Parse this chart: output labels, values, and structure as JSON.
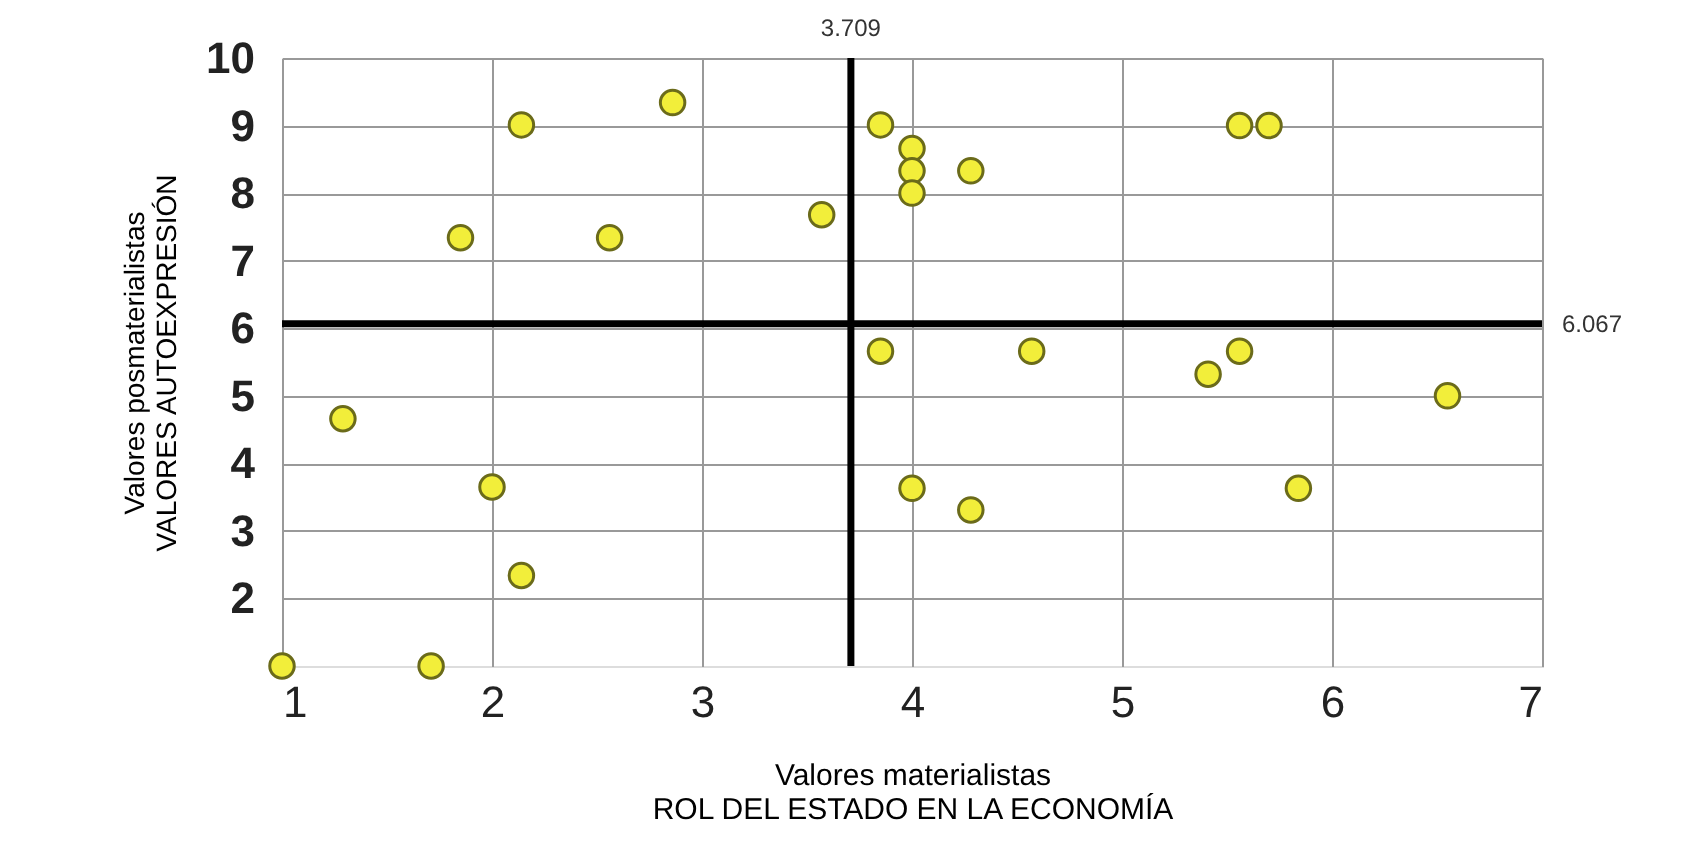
{
  "chart_data": {
    "type": "scatter",
    "xlabel": "Valores materialistas\nROL DEL ESTADO EN LA ECONOMÍA",
    "ylabel": "Valores posmaterialistas\nVALORES AUTOEXPRESIÓN",
    "x": [
      1,
      1.71,
      1.29,
      2.0,
      2.14,
      1.85,
      2.56,
      2.14,
      2.86,
      3.57,
      3.85,
      4,
      4,
      4,
      4.28,
      5.56,
      5.7,
      3.85,
      4.57,
      5.56,
      5.41,
      6.55,
      4,
      4.28,
      5.84
    ],
    "series": [
      {
        "color": "#f2ee3a",
        "values": [
          1,
          1,
          4.66,
          3.65,
          2.34,
          7.34,
          7.34,
          9.01,
          9.34,
          7.68,
          9.01,
          8.66,
          8.33,
          8.0,
          8.33,
          9,
          9,
          5.66,
          5.66,
          5.66,
          5.32,
          5,
          3.63,
          3.31,
          3.63
        ]
      }
    ],
    "xlim": [
      1,
      7
    ],
    "xticks": [
      1,
      2,
      3,
      4,
      5,
      6,
      7
    ],
    "ylim": [
      1,
      10
    ],
    "yticks": [
      2,
      3,
      4,
      5,
      6,
      7,
      8,
      9,
      10
    ],
    "grid": true,
    "marker": "circle",
    "ref_lines": [
      {
        "axis": "x",
        "value": 3.709,
        "label": "3.709",
        "color": "#000000"
      },
      {
        "axis": "y",
        "value": 6.067,
        "label": "6.067",
        "color": "#000000"
      }
    ]
  }
}
